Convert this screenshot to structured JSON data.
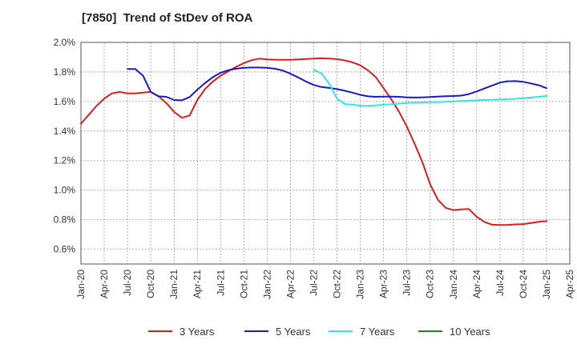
{
  "chart_data": {
    "type": "line",
    "title": "[7850]  Trend of StDev of ROA",
    "xlabel": "",
    "ylabel": "",
    "x_ticks": [
      "Jan-20",
      "Apr-20",
      "Jul-20",
      "Oct-20",
      "Jan-21",
      "Apr-21",
      "Jul-21",
      "Oct-21",
      "Jan-22",
      "Apr-22",
      "Jul-22",
      "Oct-22",
      "Jan-23",
      "Apr-23",
      "Jul-23",
      "Oct-23",
      "Jan-24",
      "Apr-24",
      "Jul-24",
      "Oct-24",
      "Jan-25",
      "Apr-25"
    ],
    "y_ticks": [
      {
        "value": 0.6,
        "label": "0.6%"
      },
      {
        "value": 0.8,
        "label": "0.8%"
      },
      {
        "value": 1.0,
        "label": "1.0%"
      },
      {
        "value": 1.2,
        "label": "1.2%"
      },
      {
        "value": 1.4,
        "label": "1.4%"
      },
      {
        "value": 1.6,
        "label": "1.6%"
      },
      {
        "value": 1.8,
        "label": "1.8%"
      },
      {
        "value": 2.0,
        "label": "2.0%"
      }
    ],
    "ylim": [
      0.5,
      2.0
    ],
    "grid": true,
    "legend_position": "bottom",
    "series": [
      {
        "name": "3 Years",
        "color": "#e41a1c",
        "points": [
          [
            "Jan-20",
            1.45
          ],
          [
            "Feb-20",
            1.51
          ],
          [
            "Mar-20",
            1.57
          ],
          [
            "Apr-20",
            1.62
          ],
          [
            "May-20",
            1.655
          ],
          [
            "Jun-20",
            1.665
          ],
          [
            "Jul-20",
            1.655
          ],
          [
            "Aug-20",
            1.655
          ],
          [
            "Sep-20",
            1.66
          ],
          [
            "Oct-20",
            1.665
          ],
          [
            "Nov-20",
            1.635
          ],
          [
            "Dec-20",
            1.59
          ],
          [
            "Jan-21",
            1.53
          ],
          [
            "Feb-21",
            1.49
          ],
          [
            "Mar-21",
            1.505
          ],
          [
            "Apr-21",
            1.61
          ],
          [
            "May-21",
            1.685
          ],
          [
            "Jun-21",
            1.735
          ],
          [
            "Jul-21",
            1.775
          ],
          [
            "Aug-21",
            1.805
          ],
          [
            "Sep-21",
            1.835
          ],
          [
            "Oct-21",
            1.86
          ],
          [
            "Nov-21",
            1.88
          ],
          [
            "Dec-21",
            1.89
          ],
          [
            "Jan-22",
            1.885
          ],
          [
            "Feb-22",
            1.883
          ],
          [
            "Mar-22",
            1.882
          ],
          [
            "Apr-22",
            1.882
          ],
          [
            "May-22",
            1.885
          ],
          [
            "Jun-22",
            1.888
          ],
          [
            "Jul-22",
            1.89
          ],
          [
            "Aug-22",
            1.892
          ],
          [
            "Sep-22",
            1.89
          ],
          [
            "Oct-22",
            1.887
          ],
          [
            "Nov-22",
            1.878
          ],
          [
            "Dec-22",
            1.865
          ],
          [
            "Jan-23",
            1.845
          ],
          [
            "Feb-23",
            1.81
          ],
          [
            "Mar-23",
            1.765
          ],
          [
            "Apr-23",
            1.69
          ],
          [
            "May-23",
            1.615
          ],
          [
            "Jun-23",
            1.53
          ],
          [
            "Jul-23",
            1.43
          ],
          [
            "Aug-23",
            1.315
          ],
          [
            "Sep-23",
            1.19
          ],
          [
            "Oct-23",
            1.04
          ],
          [
            "Nov-23",
            0.935
          ],
          [
            "Dec-23",
            0.88
          ],
          [
            "Jan-24",
            0.865
          ],
          [
            "Feb-24",
            0.87
          ],
          [
            "Mar-24",
            0.872
          ],
          [
            "Apr-24",
            0.82
          ],
          [
            "May-24",
            0.785
          ],
          [
            "Jun-24",
            0.766
          ],
          [
            "Jul-24",
            0.764
          ],
          [
            "Aug-24",
            0.765
          ],
          [
            "Sep-24",
            0.768
          ],
          [
            "Oct-24",
            0.77
          ],
          [
            "Nov-24",
            0.778
          ],
          [
            "Dec-24",
            0.786
          ],
          [
            "Jan-25",
            0.79
          ]
        ]
      },
      {
        "name": "5 Years",
        "color": "#1a1ac8",
        "points": [
          [
            "Jul-20",
            1.82
          ],
          [
            "Aug-20",
            1.82
          ],
          [
            "Sep-20",
            1.775
          ],
          [
            "Oct-20",
            1.665
          ],
          [
            "Nov-20",
            1.635
          ],
          [
            "Dec-20",
            1.632
          ],
          [
            "Jan-21",
            1.61
          ],
          [
            "Feb-21",
            1.608
          ],
          [
            "Mar-21",
            1.63
          ],
          [
            "Apr-21",
            1.68
          ],
          [
            "May-21",
            1.725
          ],
          [
            "Jun-21",
            1.765
          ],
          [
            "Jul-21",
            1.795
          ],
          [
            "Aug-21",
            1.812
          ],
          [
            "Sep-21",
            1.822
          ],
          [
            "Oct-21",
            1.828
          ],
          [
            "Nov-21",
            1.83
          ],
          [
            "Dec-21",
            1.83
          ],
          [
            "Jan-22",
            1.828
          ],
          [
            "Feb-22",
            1.822
          ],
          [
            "Mar-22",
            1.81
          ],
          [
            "Apr-22",
            1.788
          ],
          [
            "May-22",
            1.763
          ],
          [
            "Jun-22",
            1.735
          ],
          [
            "Jul-22",
            1.712
          ],
          [
            "Aug-22",
            1.698
          ],
          [
            "Sep-22",
            1.692
          ],
          [
            "Oct-22",
            1.684
          ],
          [
            "Nov-22",
            1.673
          ],
          [
            "Dec-22",
            1.66
          ],
          [
            "Jan-23",
            1.645
          ],
          [
            "Feb-23",
            1.635
          ],
          [
            "Mar-23",
            1.632
          ],
          [
            "Apr-23",
            1.633
          ],
          [
            "May-23",
            1.633
          ],
          [
            "Jun-23",
            1.632
          ],
          [
            "Jul-23",
            1.628
          ],
          [
            "Aug-23",
            1.627
          ],
          [
            "Sep-23",
            1.628
          ],
          [
            "Oct-23",
            1.63
          ],
          [
            "Nov-23",
            1.633
          ],
          [
            "Dec-23",
            1.636
          ],
          [
            "Jan-24",
            1.637
          ],
          [
            "Feb-24",
            1.64
          ],
          [
            "Mar-24",
            1.65
          ],
          [
            "Apr-24",
            1.668
          ],
          [
            "May-24",
            1.688
          ],
          [
            "Jun-24",
            1.708
          ],
          [
            "Jul-24",
            1.728
          ],
          [
            "Aug-24",
            1.737
          ],
          [
            "Sep-24",
            1.738
          ],
          [
            "Oct-24",
            1.733
          ],
          [
            "Nov-24",
            1.722
          ],
          [
            "Dec-24",
            1.71
          ],
          [
            "Jan-25",
            1.69
          ]
        ]
      },
      {
        "name": "7 Years",
        "color": "#33e6e6",
        "points": [
          [
            "Jul-22",
            1.815
          ],
          [
            "Aug-22",
            1.79
          ],
          [
            "Sep-22",
            1.72
          ],
          [
            "Oct-22",
            1.62
          ],
          [
            "Nov-22",
            1.583
          ],
          [
            "Dec-22",
            1.578
          ],
          [
            "Jan-23",
            1.572
          ],
          [
            "Feb-23",
            1.57
          ],
          [
            "Mar-23",
            1.574
          ],
          [
            "Apr-23",
            1.578
          ],
          [
            "May-23",
            1.582
          ],
          [
            "Jun-23",
            1.586
          ],
          [
            "Jul-23",
            1.59
          ],
          [
            "Aug-23",
            1.593
          ],
          [
            "Sep-23",
            1.594
          ],
          [
            "Oct-23",
            1.595
          ],
          [
            "Nov-23",
            1.596
          ],
          [
            "Dec-23",
            1.598
          ],
          [
            "Jan-24",
            1.6
          ],
          [
            "Feb-24",
            1.603
          ],
          [
            "Mar-24",
            1.606
          ],
          [
            "Apr-24",
            1.608
          ],
          [
            "May-24",
            1.61
          ],
          [
            "Jun-24",
            1.612
          ],
          [
            "Jul-24",
            1.614
          ],
          [
            "Aug-24",
            1.616
          ],
          [
            "Sep-24",
            1.618
          ],
          [
            "Oct-24",
            1.622
          ],
          [
            "Nov-24",
            1.627
          ],
          [
            "Dec-24",
            1.632
          ],
          [
            "Jan-25",
            1.637
          ]
        ]
      },
      {
        "name": "10 Years",
        "color": "#1a8a1a",
        "points": []
      }
    ]
  }
}
